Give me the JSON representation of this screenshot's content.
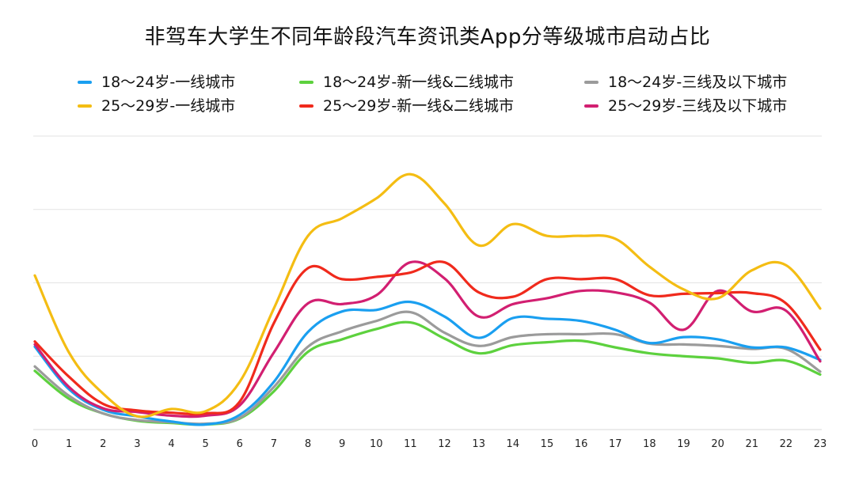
{
  "chart_data": {
    "type": "line",
    "title": "非驾车大学生不同年龄段汽车资讯类App分等级城市启动占比",
    "xlabel": "",
    "ylabel": "",
    "x": [
      0,
      1,
      2,
      3,
      4,
      5,
      6,
      7,
      8,
      9,
      10,
      11,
      12,
      13,
      14,
      15,
      16,
      17,
      18,
      19,
      20,
      21,
      22,
      23
    ],
    "x_tick_labels": [
      "0",
      "1",
      "2",
      "3",
      "4",
      "5",
      "6",
      "7",
      "8",
      "9",
      "10",
      "11",
      "12",
      "13",
      "14",
      "15",
      "16",
      "17",
      "18",
      "19",
      "20",
      "21",
      "22",
      "23"
    ],
    "y_range": [
      0,
      4
    ],
    "y_axis_labels_shown": false,
    "grid": true,
    "legend_position": "top",
    "series": [
      {
        "name": "18～24岁-一线城市",
        "color": "#1a9ff0",
        "values": [
          1.13,
          0.55,
          0.27,
          0.18,
          0.11,
          0.07,
          0.2,
          0.65,
          1.33,
          1.61,
          1.63,
          1.74,
          1.54,
          1.25,
          1.52,
          1.51,
          1.48,
          1.36,
          1.18,
          1.26,
          1.23,
          1.12,
          1.12,
          0.95
        ]
      },
      {
        "name": "25～29岁-一线城市",
        "color": "#f4bd13",
        "values": [
          2.1,
          1.05,
          0.49,
          0.18,
          0.28,
          0.25,
          0.65,
          1.65,
          2.64,
          2.88,
          3.15,
          3.48,
          3.08,
          2.51,
          2.8,
          2.64,
          2.64,
          2.6,
          2.22,
          1.91,
          1.79,
          2.17,
          2.24,
          1.65
        ]
      },
      {
        "name": "18～24岁-新一线&二线城市",
        "color": "#5dd13e",
        "values": [
          0.8,
          0.42,
          0.22,
          0.12,
          0.09,
          0.07,
          0.15,
          0.52,
          1.06,
          1.23,
          1.37,
          1.46,
          1.24,
          1.04,
          1.15,
          1.19,
          1.21,
          1.12,
          1.04,
          1.0,
          0.97,
          0.91,
          0.94,
          0.75
        ]
      },
      {
        "name": "25～29岁-新一线&二线城市",
        "color": "#f02a1c",
        "values": [
          1.2,
          0.72,
          0.35,
          0.26,
          0.23,
          0.22,
          0.38,
          1.45,
          2.2,
          2.05,
          2.08,
          2.14,
          2.28,
          1.87,
          1.81,
          2.05,
          2.05,
          2.05,
          1.83,
          1.85,
          1.86,
          1.86,
          1.72,
          1.09
        ]
      },
      {
        "name": "18～24岁-三线及以下城市",
        "color": "#9b9b9b",
        "values": [
          0.86,
          0.46,
          0.22,
          0.13,
          0.1,
          0.08,
          0.16,
          0.58,
          1.13,
          1.34,
          1.48,
          1.6,
          1.32,
          1.14,
          1.26,
          1.3,
          1.3,
          1.3,
          1.17,
          1.16,
          1.14,
          1.1,
          1.1,
          0.79
        ]
      },
      {
        "name": "25～29岁-三线及以下城市",
        "color": "#d21f71",
        "values": [
          1.16,
          0.58,
          0.29,
          0.24,
          0.19,
          0.19,
          0.33,
          1.05,
          1.72,
          1.71,
          1.83,
          2.28,
          2.06,
          1.54,
          1.71,
          1.79,
          1.89,
          1.87,
          1.73,
          1.36,
          1.89,
          1.61,
          1.62,
          0.93
        ]
      }
    ]
  },
  "legend": {
    "rows": [
      [
        "18～24岁-一线城市",
        "18～24岁-新一线&二线城市",
        "18～24岁-三线及以下城市"
      ],
      [
        "25～29岁-一线城市",
        "25～29岁-新一线&二线城市",
        "25～29岁-三线及以下城市"
      ]
    ]
  }
}
